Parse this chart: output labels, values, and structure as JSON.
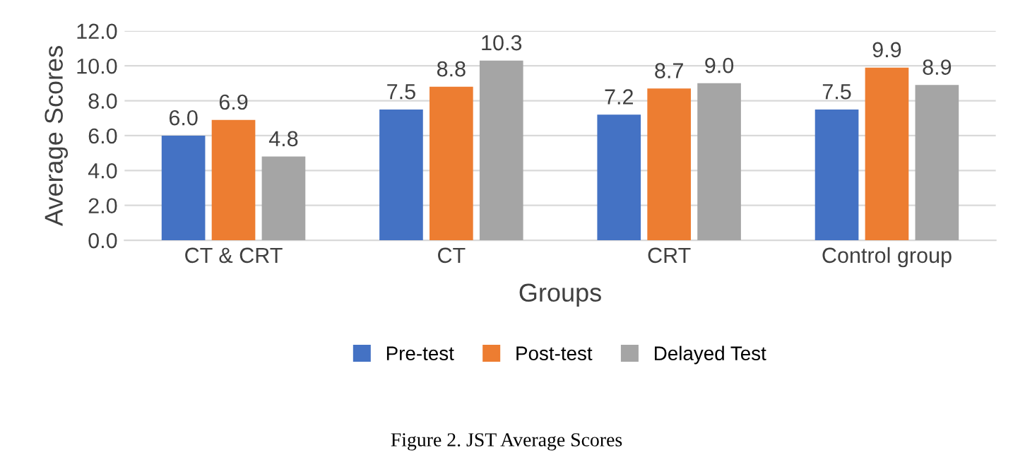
{
  "chart_data": {
    "type": "bar",
    "categories": [
      "CT & CRT",
      "CT",
      "CRT",
      "Control group"
    ],
    "series": [
      {
        "name": "Pre-test",
        "color": "#4472c4",
        "values": [
          6.0,
          7.5,
          7.2,
          7.5
        ],
        "value_labels": [
          "6.0",
          "7.5",
          "7.2",
          "7.5"
        ]
      },
      {
        "name": "Post-test",
        "color": "#ed7d31",
        "values": [
          6.9,
          8.8,
          8.7,
          9.9
        ],
        "value_labels": [
          "6.9",
          "8.8",
          "8.7",
          "9.9"
        ]
      },
      {
        "name": "Delayed Test",
        "color": "#a5a5a5",
        "values": [
          4.8,
          10.3,
          9.0,
          8.9
        ],
        "value_labels": [
          "4.8",
          "10.3",
          "9.0",
          "8.9"
        ]
      }
    ],
    "xlabel": "Groups",
    "ylabel": "Average Scores",
    "ylim": [
      0,
      12
    ],
    "yticks": [
      {
        "value": 0,
        "label": "0.0"
      },
      {
        "value": 2,
        "label": "2.0"
      },
      {
        "value": 4,
        "label": "4.0"
      },
      {
        "value": 6,
        "label": "6.0"
      },
      {
        "value": 8,
        "label": "8.0"
      },
      {
        "value": 10,
        "label": "10.0"
      },
      {
        "value": 12,
        "label": "12.0"
      }
    ],
    "grid": "y",
    "legend": "bottom",
    "annotations": [
      "Figure 2. JST Average Scores"
    ]
  }
}
